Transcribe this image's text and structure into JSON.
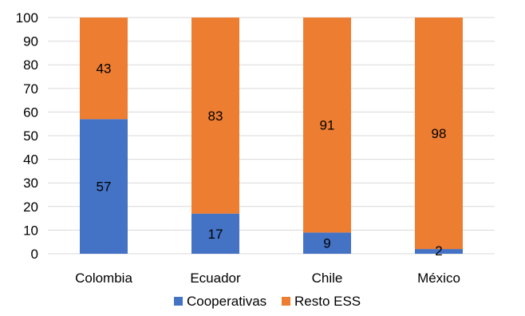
{
  "chart_data": {
    "type": "bar",
    "stacked": true,
    "title": "",
    "xlabel": "",
    "ylabel": "",
    "categories": [
      "Colombia",
      "Ecuador",
      "Chile",
      "México"
    ],
    "series": [
      {
        "name": "Cooperativas",
        "values": [
          57,
          17,
          9,
          2
        ],
        "color": "#4472C4"
      },
      {
        "name": "Resto ESS",
        "values": [
          43,
          83,
          91,
          98
        ],
        "color": "#ED7D31"
      }
    ],
    "ylim": [
      0,
      100
    ],
    "yticks": [
      "0",
      "10",
      "20",
      "30",
      "40",
      "50",
      "60",
      "70",
      "80",
      "90",
      "100"
    ],
    "grid": true,
    "legend_position": "bottom",
    "data_labels": true
  }
}
